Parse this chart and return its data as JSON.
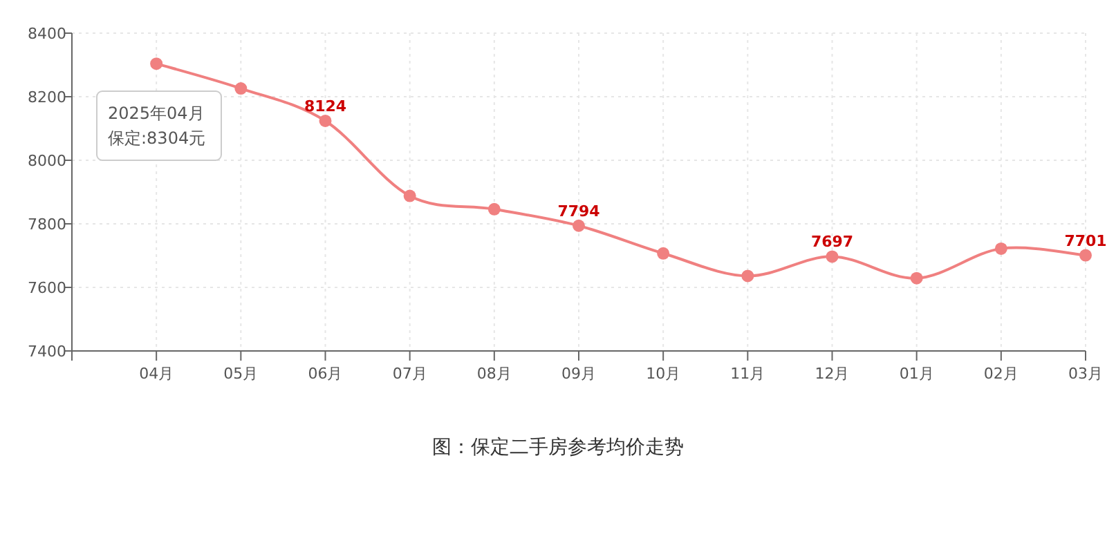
{
  "chart_data": {
    "type": "line",
    "title": "图：保定二手房参考均价走势",
    "categories": [
      "04月",
      "05月",
      "06月",
      "07月",
      "08月",
      "09月",
      "10月",
      "11月",
      "12月",
      "01月",
      "02月",
      "03月"
    ],
    "series": [
      {
        "color": "#f08080",
        "values": [
          8304,
          8226,
          8124,
          7888,
          7846,
          7794,
          7707,
          7636,
          7697,
          7629,
          7722,
          7701
        ],
        "value_labels": [
          null,
          null,
          "8124",
          null,
          null,
          "7794",
          null,
          null,
          "7697",
          null,
          null,
          "7701"
        ]
      }
    ],
    "ylim": [
      7400,
      8400
    ],
    "yticks": [
      7400,
      7600,
      7800,
      8000,
      8200,
      8400
    ],
    "grid": true,
    "marker": "circle",
    "line_style": "solid",
    "annotations": [
      "2025年04月",
      "保定:8304元"
    ]
  }
}
